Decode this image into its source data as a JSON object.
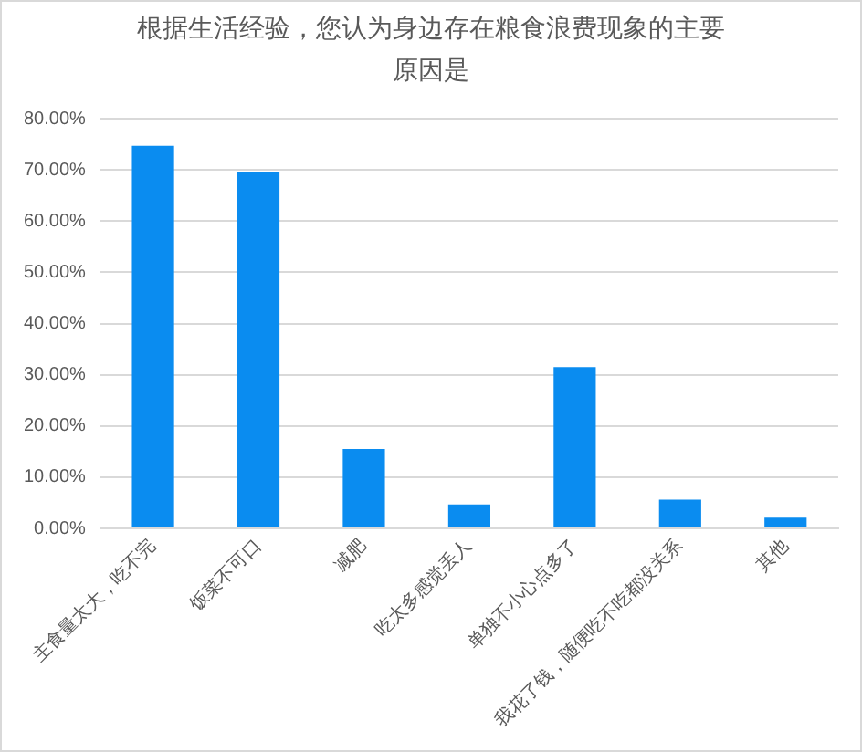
{
  "chart_data": {
    "type": "bar",
    "title": "根据生活经验，您认为身边存在粮食浪费现象的主要原因是",
    "categories": [
      "主食量太大，吃不完",
      "饭菜不可口",
      "减肥",
      "吃太多感觉丢人",
      "单独不小心点多了",
      "我花了钱，随便吃不吃都没关系",
      "其他"
    ],
    "values": [
      74.7,
      69.6,
      15.5,
      4.7,
      31.5,
      5.6,
      2.1
    ],
    "color": "#0a8cf0",
    "ylim": [
      0,
      80
    ],
    "yticks": [
      {
        "value": 0,
        "label": "0.00%"
      },
      {
        "value": 10,
        "label": "10.00%"
      },
      {
        "value": 20,
        "label": "20.00%"
      },
      {
        "value": 30,
        "label": "30.00%"
      },
      {
        "value": 40,
        "label": "40.00%"
      },
      {
        "value": 50,
        "label": "50.00%"
      },
      {
        "value": 60,
        "label": "60.00%"
      },
      {
        "value": 70,
        "label": "70.00%"
      },
      {
        "value": 80,
        "label": "80.00%"
      }
    ],
    "grid": "y"
  }
}
